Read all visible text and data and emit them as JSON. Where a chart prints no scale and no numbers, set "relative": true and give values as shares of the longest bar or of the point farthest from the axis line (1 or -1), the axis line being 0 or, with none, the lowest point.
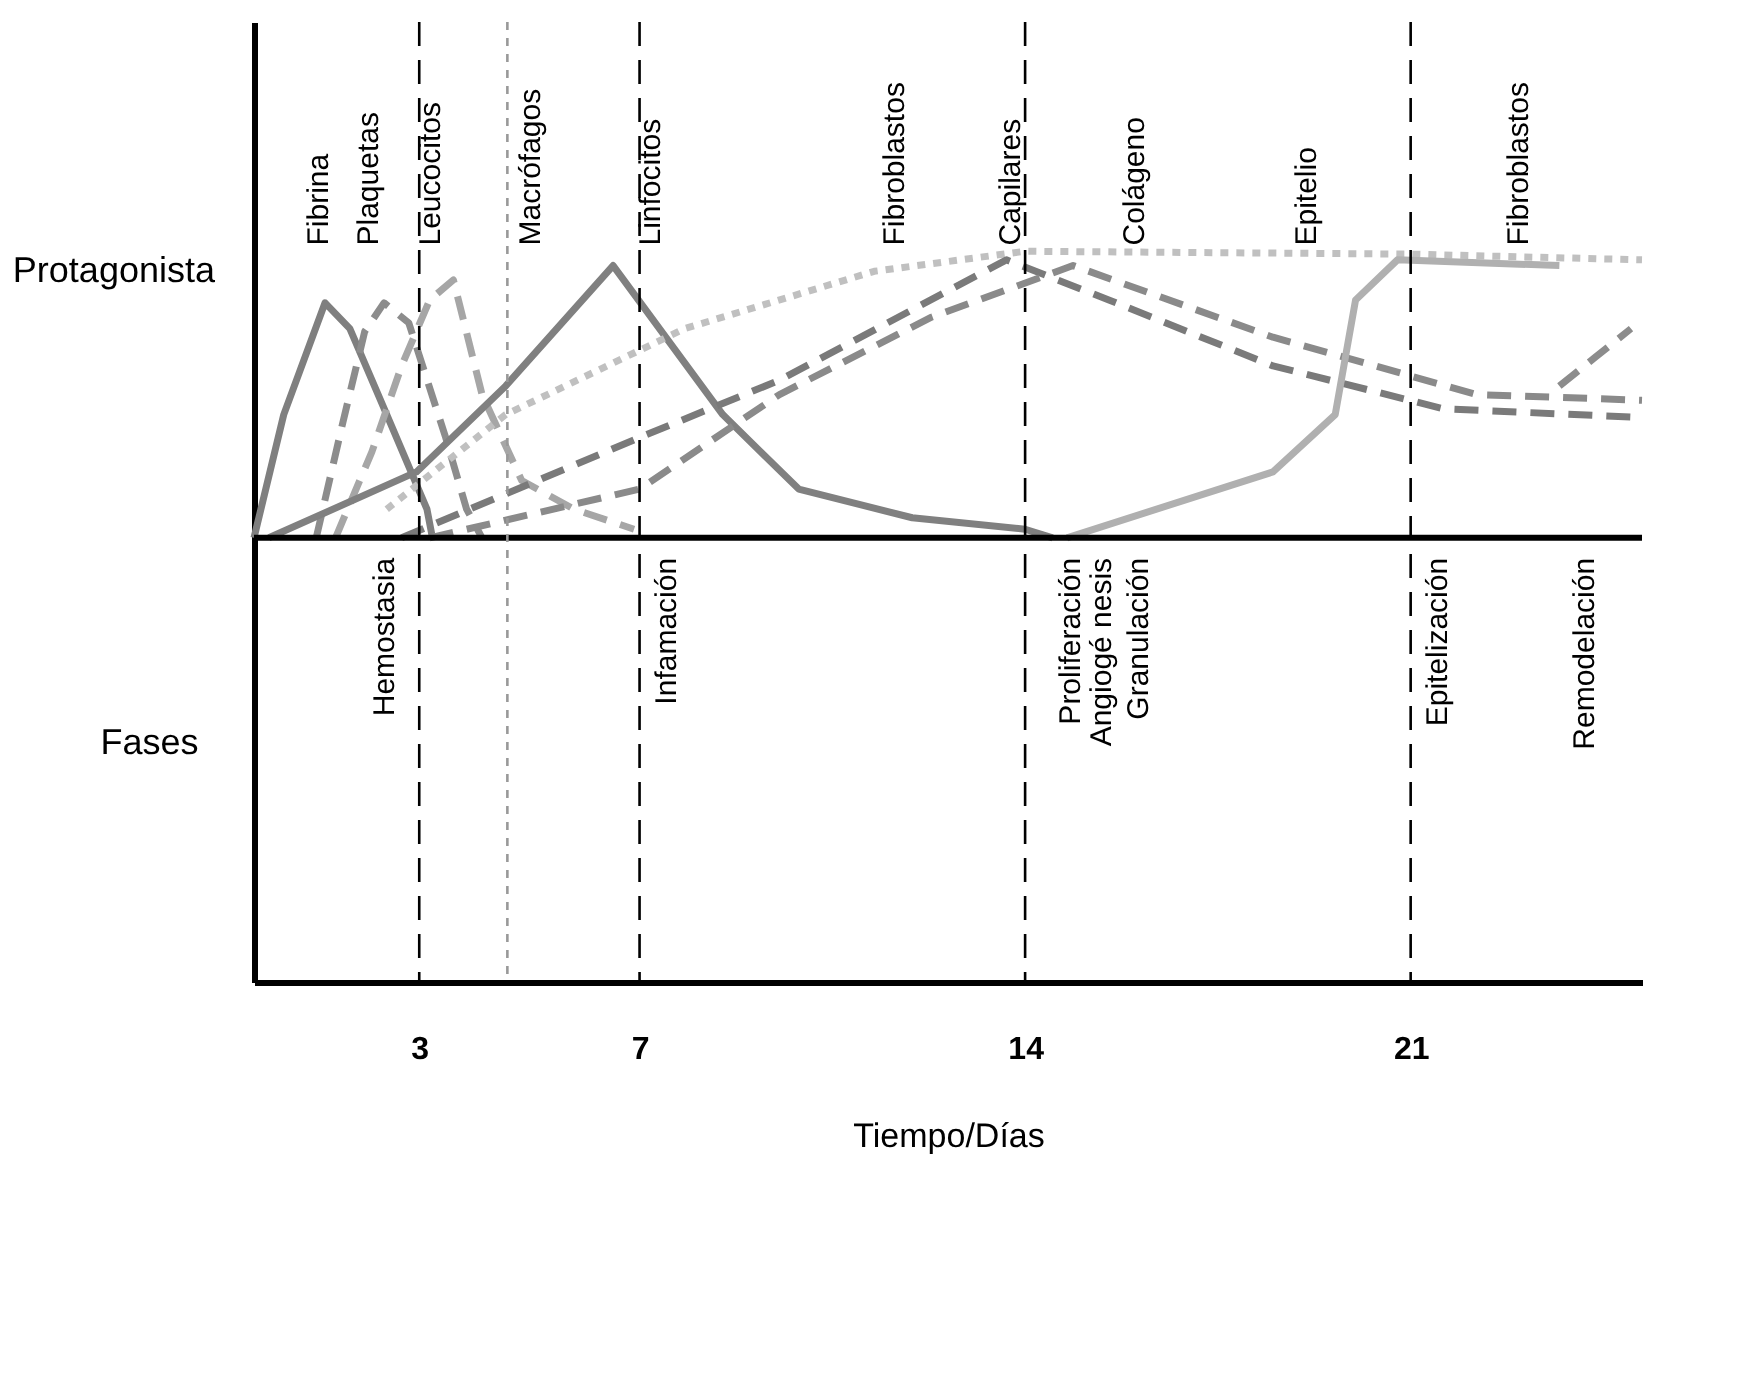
{
  "chart_data": {
    "type": "line",
    "relative": true,
    "ylabel": "Protagonista",
    "xlabel": "Tiempo/Días",
    "xlim": [
      0,
      25.2
    ],
    "xticks": [
      3,
      7,
      14,
      21
    ],
    "grid": false,
    "marker": "none",
    "series": [
      {
        "color": "#7f7f7f",
        "line_style": "solid",
        "x": [
          0,
          0.54,
          1.29,
          1.74,
          2.41,
          3.14,
          3.24
        ],
        "values": [
          0,
          0.43,
          0.82,
          0.73,
          0.43,
          0.1,
          0
        ]
      },
      {
        "color": "#8c8c8c",
        "line_style": "dashed",
        "x": [
          1.13,
          1.61,
          2.01,
          2.36,
          2.81,
          3.48,
          3.86,
          4.14
        ],
        "values": [
          0,
          0.4,
          0.72,
          0.82,
          0.75,
          0.35,
          0.1,
          0
        ]
      },
      {
        "color": "#a6a6a6",
        "line_style": "dashed",
        "x": [
          1.48,
          2.14,
          2.68,
          3.19,
          3.62,
          4.14,
          4.86,
          5.81,
          6.9
        ],
        "values": [
          0,
          0.3,
          0.6,
          0.83,
          0.9,
          0.5,
          0.2,
          0.1,
          0.03
        ]
      },
      {
        "color": "#808080",
        "line_style": "solid",
        "x": [
          0.27,
          2.95,
          4.57,
          6.52,
          8.51,
          9.89,
          11.95,
          14,
          14.5
        ],
        "values": [
          0,
          0.23,
          0.53,
          0.95,
          0.43,
          0.17,
          0.07,
          0.03,
          0
        ]
      },
      {
        "color": "#c0c0c0",
        "line_style": "dotted",
        "x": [
          2.41,
          4.57,
          7.82,
          11.26,
          14,
          21,
          25.2
        ],
        "values": [
          0.1,
          0.43,
          0.73,
          0.93,
          1.0,
          0.99,
          0.97
        ]
      },
      {
        "color": "#7a7a7a",
        "line_style": "dashed",
        "x": [
          2.68,
          7,
          9.54,
          13.66,
          15.52,
          18.5,
          21.6,
          25.2
        ],
        "values": [
          0,
          0.35,
          0.55,
          0.97,
          0.83,
          0.6,
          0.45,
          0.42
        ]
      },
      {
        "color": "#8a8a8a",
        "line_style": "dashed",
        "x": [
          3.19,
          7,
          9.54,
          12.3,
          14.87,
          18.5,
          22.2,
          25.2
        ],
        "values": [
          0,
          0.17,
          0.5,
          0.77,
          0.95,
          0.7,
          0.5,
          0.48
        ]
      },
      {
        "color": "#b0b0b0",
        "line_style": "solid",
        "x": [
          14.76,
          18.5,
          19.63,
          20.0,
          20.76,
          23.7
        ],
        "values": [
          0,
          0.23,
          0.43,
          0.83,
          0.97,
          0.95
        ]
      },
      {
        "color": "#8c8c8c",
        "line_style": "dashed",
        "x": [
          23.7,
          24.35,
          25.0
        ],
        "values": [
          0.53,
          0.63,
          0.73
        ]
      }
    ],
    "ref_lines": [
      {
        "axis": "y",
        "value": 0,
        "color": "#000000",
        "line_style": "solid"
      },
      {
        "axis": "x",
        "value": 3,
        "color": "#000000",
        "line_style": "dashed"
      },
      {
        "axis": "x",
        "value": 4.6,
        "color": "#999999",
        "line_style": "dotted"
      },
      {
        "axis": "x",
        "value": 7,
        "color": "#000000",
        "line_style": "dashed"
      },
      {
        "axis": "x",
        "value": 14,
        "color": "#000000",
        "line_style": "dashed"
      },
      {
        "axis": "x",
        "value": 21,
        "color": "#000000",
        "line_style": "dashed"
      }
    ],
    "annotations": [
      "Fibrina",
      "Plaquetas",
      "Leucocitos",
      "Macrófagos",
      "Linfocitos",
      "Fibroblastos",
      "Capilares",
      "Colágeno",
      "Epitelio",
      "Fibroblastos",
      "Fases",
      "Hemostasia",
      "Infamación",
      "Proliferación",
      "Angiogé nesis",
      "Granulación",
      "Epitelización",
      "Remodelación"
    ]
  }
}
